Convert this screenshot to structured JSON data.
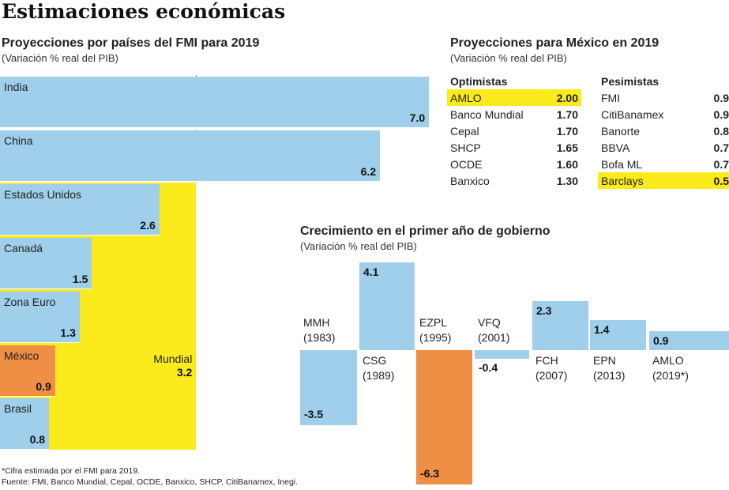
{
  "title": "Estimaciones económicas",
  "chart_data": [
    {
      "type": "bar",
      "title": "Proyecciones por países del FMI para 2019",
      "subtitle": "(Variación % real del PIB)",
      "categories": [
        "India",
        "China",
        "Estados Unidos",
        "Canadá",
        "Zona Euro",
        "México",
        "Brasil"
      ],
      "values": [
        7.0,
        6.2,
        2.6,
        1.5,
        1.3,
        0.9,
        0.8
      ],
      "labels": [
        "7.0",
        "6.2",
        "2.6",
        "1.5",
        "1.3",
        "0.9",
        "0.8"
      ],
      "highlight": "México",
      "reference": {
        "name": "Mundial",
        "value": 3.2,
        "label": "3.2"
      },
      "colors": {
        "bar": "#9fcfea",
        "highlight": "#ef8f45",
        "reference": "#fbea1c"
      }
    },
    {
      "type": "table",
      "title": "Proyecciones para México en 2019",
      "subtitle": "(Variación % real del PIB)",
      "optimistas": {
        "header": "Optimistas",
        "rows": [
          [
            "AMLO",
            "2.00"
          ],
          [
            "Banco Mundial",
            "1.70"
          ],
          [
            "Cepal",
            "1.70"
          ],
          [
            "SHCP",
            "1.65"
          ],
          [
            "OCDE",
            "1.60"
          ],
          [
            "Banxico",
            "1.30"
          ]
        ]
      },
      "pesimistas": {
        "header": "Pesimistas",
        "rows": [
          [
            "FMI",
            "0.9"
          ],
          [
            "CitiBanamex",
            "0.9"
          ],
          [
            "Banorte",
            "0.8"
          ],
          [
            "BBVA",
            "0.7"
          ],
          [
            "Bofa ML",
            "0.7"
          ],
          [
            "Barclays",
            "0.5"
          ]
        ]
      },
      "highlighted": [
        "AMLO",
        "Barclays"
      ]
    },
    {
      "type": "bar",
      "title": "Crecimiento en el primer año de gobierno",
      "subtitle": "(Variación % real del PIB)",
      "categories": [
        [
          "MMH",
          "(1983)"
        ],
        [
          "CSG",
          "(1989)"
        ],
        [
          "EZPL",
          "(1995)"
        ],
        [
          "VFQ",
          "(2001)"
        ],
        [
          "FCH",
          "(2007)"
        ],
        [
          "EPN",
          "(2013)"
        ],
        [
          "AMLO",
          "(2019*)"
        ]
      ],
      "values": [
        -3.5,
        4.1,
        -6.3,
        -0.4,
        2.3,
        1.4,
        0.9
      ],
      "labels": [
        "-3.5",
        "4.1",
        "-6.3",
        "-0.4",
        "2.3",
        "1.4",
        "0.9"
      ],
      "highlight": "EZPL"
    }
  ],
  "footnote": "*Cifra estimada por el FMI para 2019.",
  "source": "Fuente: FMI, Banco Mundial, Cepal, OCDE, Banxico, SHCP, CitiBanamex, Inegi."
}
